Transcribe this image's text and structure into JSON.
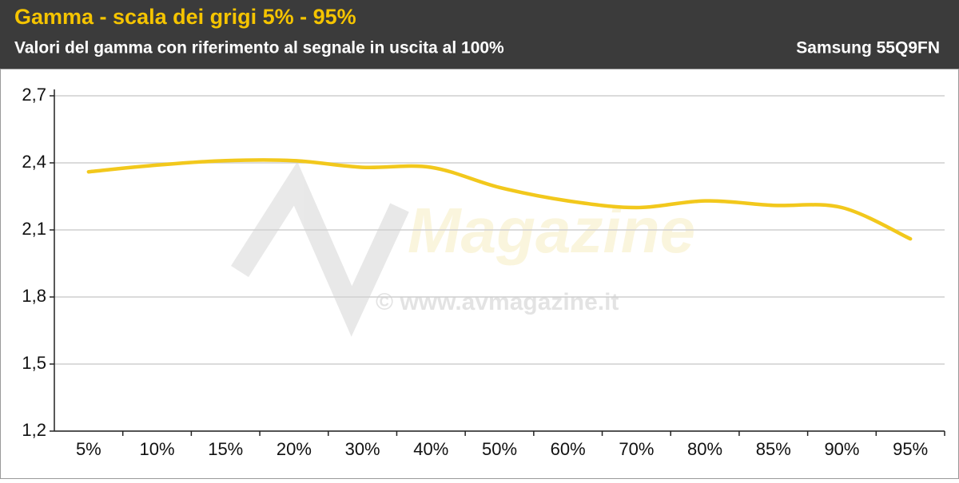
{
  "chart_data": {
    "type": "line",
    "title": "Gamma - scala dei grigi 5% - 95%",
    "subtitle": "Valori del gamma con riferimento al segnale in uscita al 100%",
    "device": "Samsung 55Q9FN",
    "watermark": {
      "logo": "Magazine",
      "url": "© www.avmagazine.it"
    },
    "categories": [
      "5%",
      "10%",
      "15%",
      "20%",
      "30%",
      "40%",
      "50%",
      "60%",
      "70%",
      "80%",
      "85%",
      "90%",
      "95%"
    ],
    "series": [
      {
        "color": "#f2c81c",
        "values": [
          2.36,
          2.39,
          2.41,
          2.41,
          2.38,
          2.38,
          2.29,
          2.23,
          2.2,
          2.23,
          2.21,
          2.2,
          2.06
        ]
      }
    ],
    "ylim": [
      1.2,
      2.7
    ],
    "yticks": [
      {
        "value": 1.2,
        "label": "1,2"
      },
      {
        "value": 1.5,
        "label": "1,5"
      },
      {
        "value": 1.8,
        "label": "1,8"
      },
      {
        "value": 2.1,
        "label": "2,1"
      },
      {
        "value": 2.4,
        "label": "2,4"
      },
      {
        "value": 2.7,
        "label": "2,7"
      }
    ],
    "grid": true,
    "smooth": true
  }
}
